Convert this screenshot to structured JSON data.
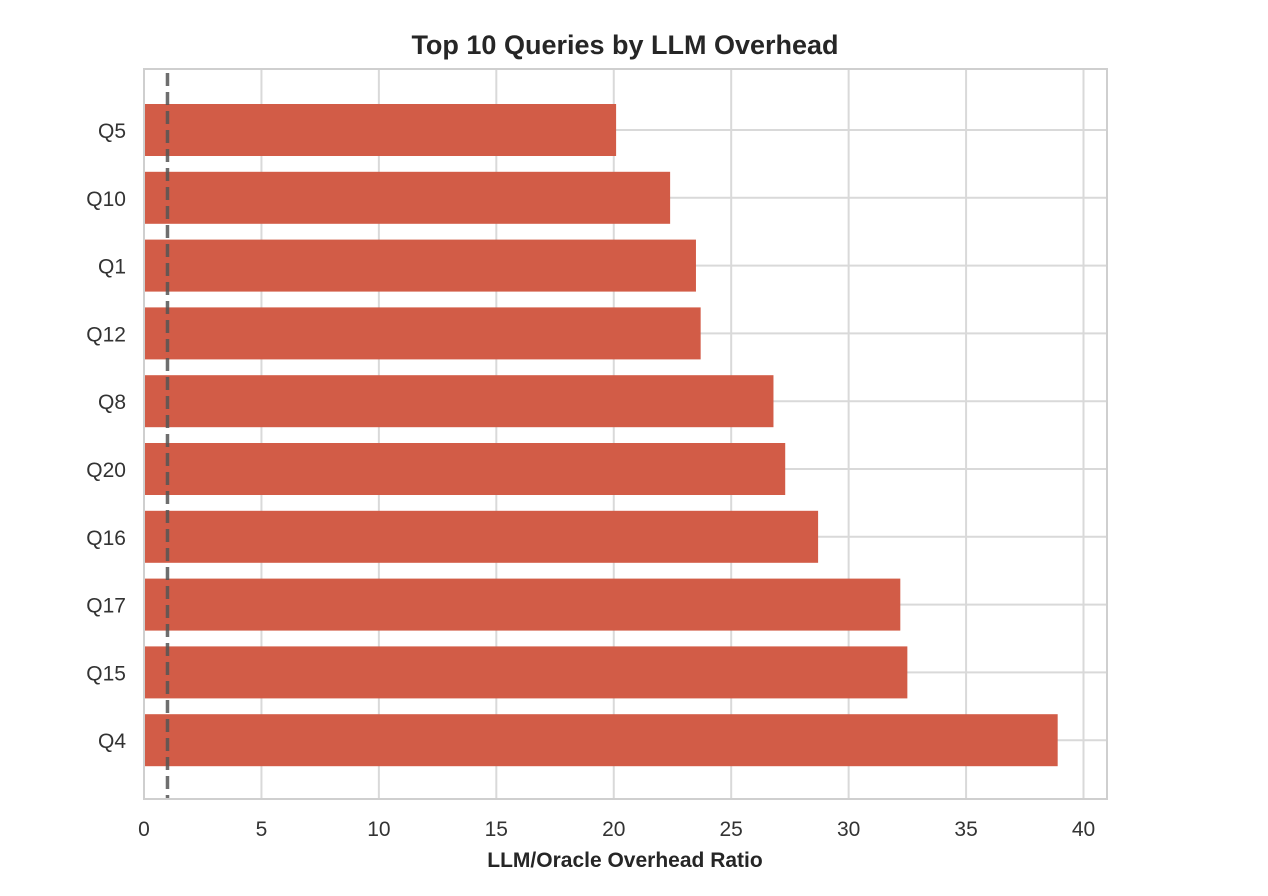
{
  "chart_data": {
    "type": "bar",
    "orientation": "horizontal",
    "title": "Top 10 Queries by LLM Overhead",
    "xlabel": "LLM/Oracle Overhead Ratio",
    "ylabel": "",
    "categories": [
      "Q5",
      "Q10",
      "Q1",
      "Q12",
      "Q8",
      "Q20",
      "Q16",
      "Q17",
      "Q15",
      "Q4"
    ],
    "values": [
      20.1,
      22.4,
      23.5,
      23.7,
      26.8,
      27.3,
      28.7,
      32.2,
      32.5,
      38.9
    ],
    "xlim": [
      0,
      41
    ],
    "xticks": [
      0,
      5,
      10,
      15,
      20,
      25,
      30,
      35,
      40
    ],
    "reference_line": {
      "x": 1,
      "style": "dashed"
    },
    "grid": true,
    "colors": {
      "bar": "#d25c47",
      "reference_line": "#555555",
      "grid": "#d9d9d9"
    }
  }
}
